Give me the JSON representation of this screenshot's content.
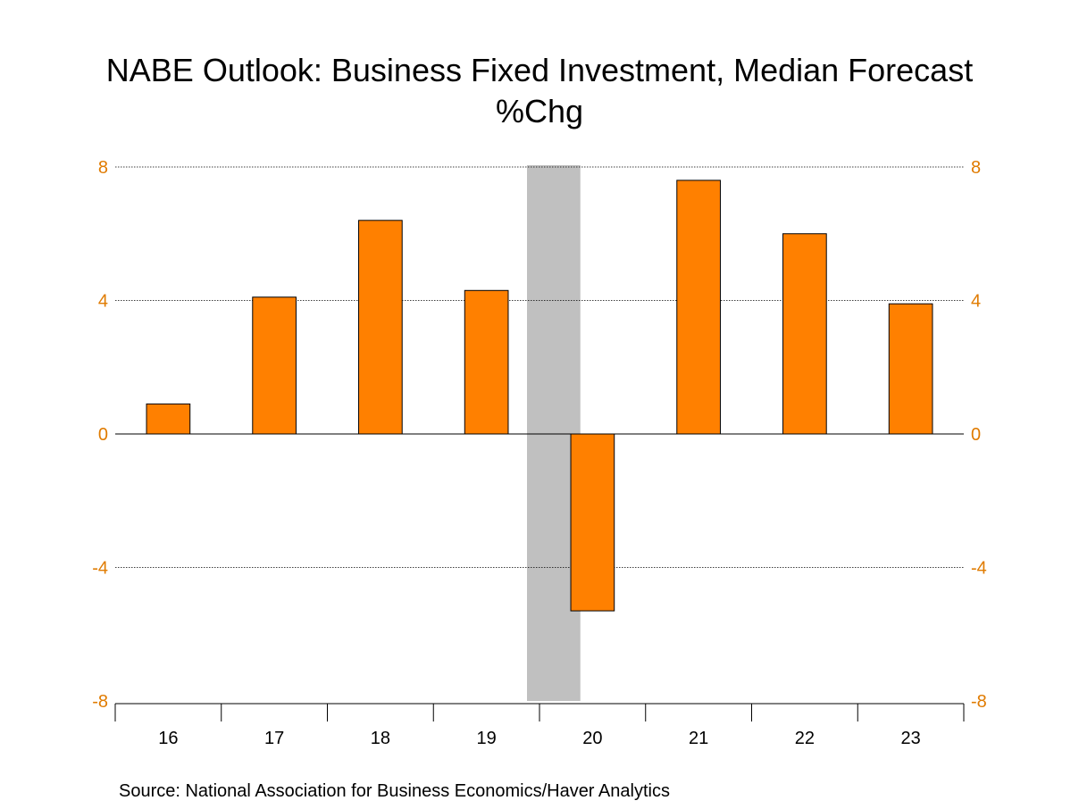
{
  "chart_data": {
    "type": "bar",
    "title": "NABE Outlook: Business Fixed Investment, Median Forecast",
    "subtitle": "%Chg",
    "categories": [
      "16",
      "17",
      "18",
      "19",
      "20",
      "21",
      "22",
      "23"
    ],
    "values": [
      0.9,
      4.1,
      6.4,
      4.3,
      -5.3,
      7.6,
      6.0,
      3.9
    ],
    "ylim": [
      -8,
      8
    ],
    "yticks": [
      8,
      4,
      0,
      -4,
      -8
    ],
    "shaded_period": "20",
    "grid": true,
    "colors": {
      "bar": "#ff8000",
      "axis_labels": "#e07b00",
      "shading": "#c0c0c0"
    }
  },
  "source": "Source:  National Association for Business Economics/Haver Analytics"
}
